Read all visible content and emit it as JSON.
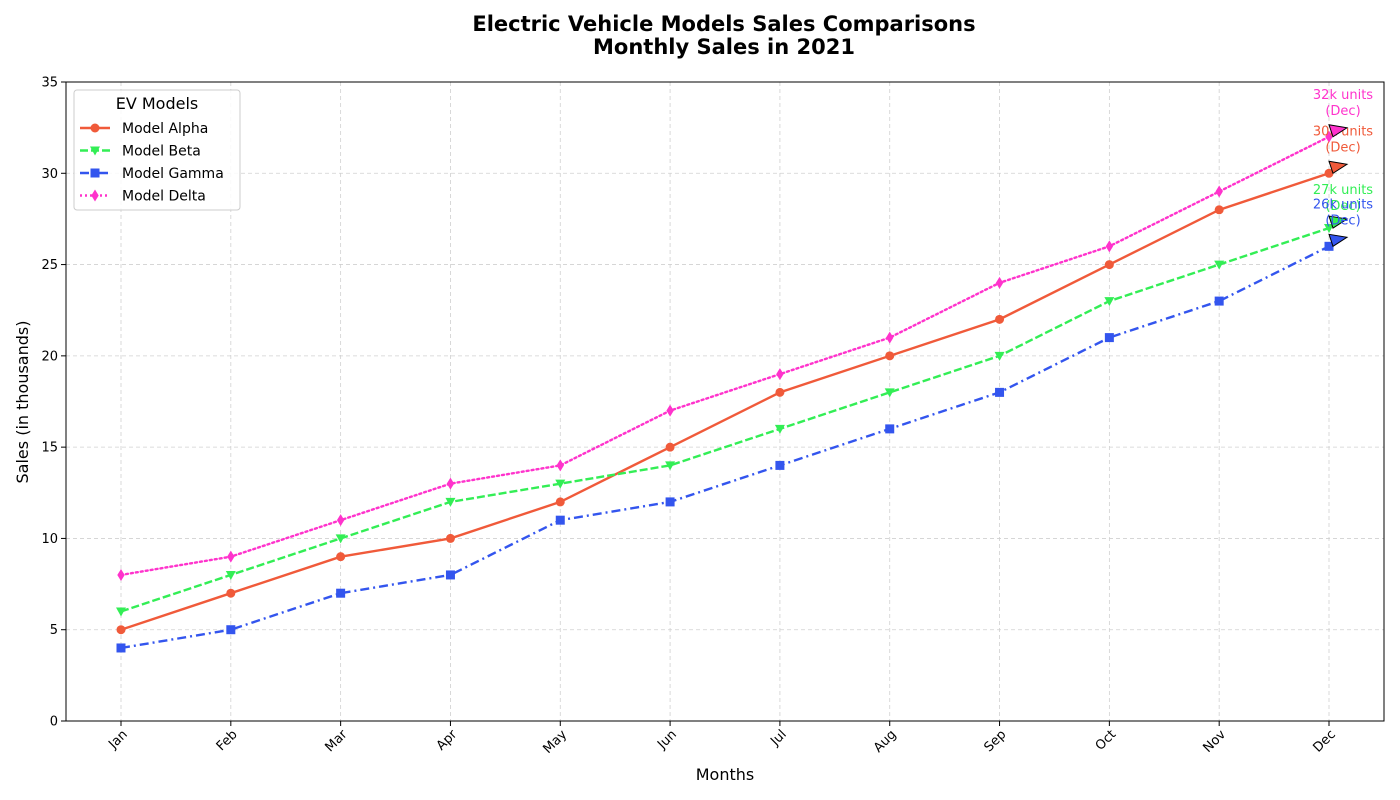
{
  "chart_data": {
    "type": "line",
    "title": "Electric Vehicle Models Sales Comparisons",
    "subtitle": "Monthly Sales in 2021",
    "xlabel": "Months",
    "ylabel": "Sales (in thousands)",
    "categories": [
      "Jan",
      "Feb",
      "Mar",
      "Apr",
      "May",
      "Jun",
      "Jul",
      "Aug",
      "Sep",
      "Oct",
      "Nov",
      "Dec"
    ],
    "ylim": [
      0,
      35
    ],
    "yticks": [
      0,
      5,
      10,
      15,
      20,
      25,
      30,
      35
    ],
    "grid": true,
    "legend": {
      "title": "EV Models",
      "placement": "top-left"
    },
    "series": [
      {
        "name": "Model Alpha",
        "values": [
          5,
          7,
          9,
          10,
          12,
          15,
          18,
          20,
          22,
          25,
          28,
          30
        ],
        "color": "#f05a3a",
        "marker": "circle",
        "dash": "solid",
        "annotation": {
          "line1": "30k units",
          "line2": "(Dec)"
        }
      },
      {
        "name": "Model Beta",
        "values": [
          6,
          8,
          10,
          12,
          13,
          14,
          16,
          18,
          20,
          23,
          25,
          27
        ],
        "color": "#33ee55",
        "marker": "triangle-down",
        "dash": "dashed",
        "annotation": {
          "line1": "27k units",
          "line2": "(Dec)"
        }
      },
      {
        "name": "Model Gamma",
        "values": [
          4,
          5,
          7,
          8,
          11,
          12,
          14,
          16,
          18,
          21,
          23,
          26
        ],
        "color": "#3355ee",
        "marker": "square",
        "dash": "dashdot",
        "annotation": {
          "line1": "26k units",
          "line2": "(Dec)"
        }
      },
      {
        "name": "Model Delta",
        "values": [
          8,
          9,
          11,
          13,
          14,
          17,
          19,
          21,
          24,
          26,
          29,
          32
        ],
        "color": "#ff33cc",
        "marker": "diamond",
        "dash": "dotted",
        "annotation": {
          "line1": "32k units",
          "line2": "(Dec)"
        }
      }
    ]
  }
}
